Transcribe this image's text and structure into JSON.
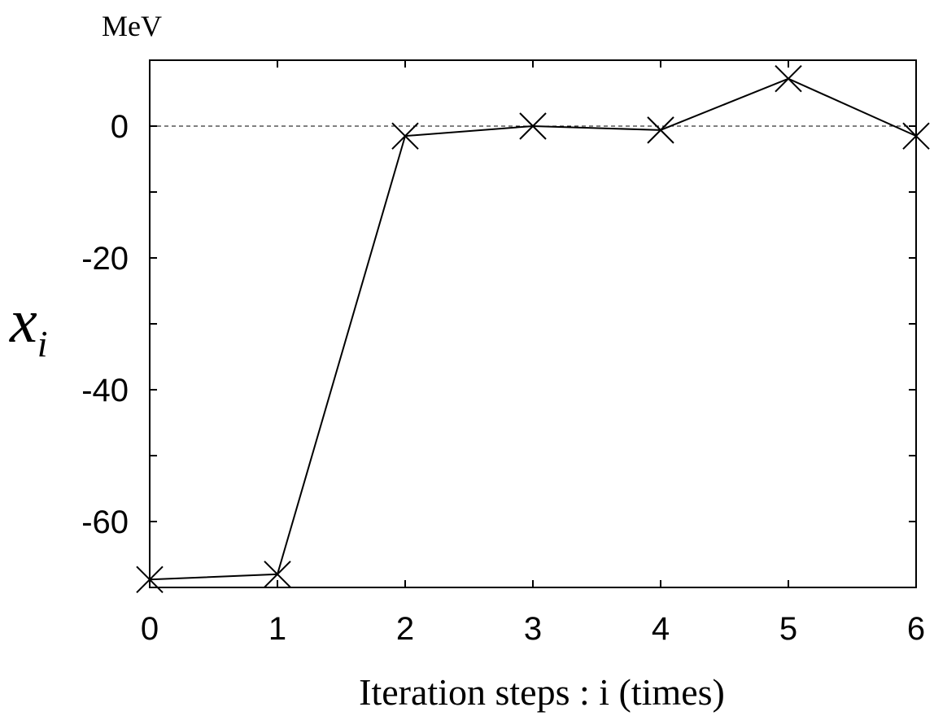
{
  "chart_data": {
    "type": "line",
    "unit_label": "MeV",
    "xlabel": "Iteration steps :  i (times)",
    "ylabel": "x",
    "ylabel_subscript": "i",
    "xlim": [
      0,
      6
    ],
    "ylim": [
      -70,
      10
    ],
    "xticks": [
      0,
      1,
      2,
      3,
      4,
      5,
      6
    ],
    "xtick_labels": [
      "0",
      "1",
      "2",
      "3",
      "4",
      "5",
      "6"
    ],
    "yticks": [
      0,
      -20,
      -40,
      -60
    ],
    "ytick_labels": [
      "0",
      "-20",
      "-40",
      "-60"
    ],
    "minor_yticks": [
      10,
      0,
      -10,
      -20,
      -30,
      -40,
      -50,
      -60,
      -70
    ],
    "reference_line": 0,
    "grid": false,
    "marker": "x",
    "color": "#000000",
    "series": [
      {
        "x": [
          0,
          1,
          2,
          3,
          4,
          5,
          6
        ],
        "values": [
          -68.8,
          -68.0,
          -1.5,
          0.0,
          -0.6,
          7.2,
          -1.5
        ]
      }
    ]
  }
}
